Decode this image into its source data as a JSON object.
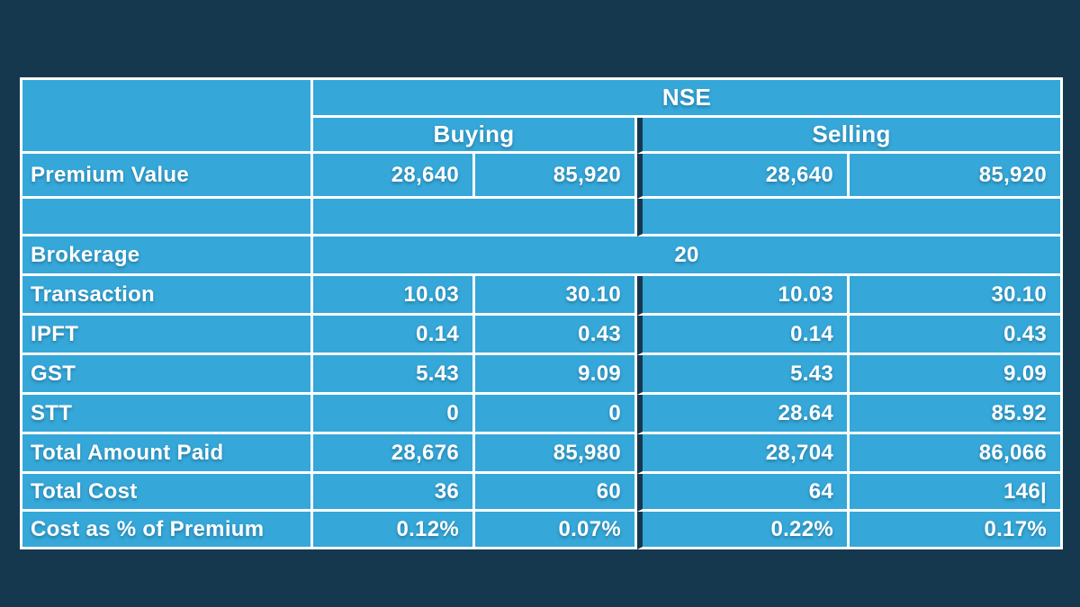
{
  "chart_data": {
    "type": "table",
    "title": "NSE",
    "groups": [
      {
        "label": "Buying",
        "span": 2
      },
      {
        "label": "Selling",
        "span": 2
      }
    ],
    "rows": [
      {
        "label": "Premium Value",
        "values": [
          "28,640",
          "85,920",
          "28,640",
          "85,920"
        ]
      },
      {
        "label": "",
        "values": [
          "",
          "",
          "",
          ""
        ]
      },
      {
        "label": "Brokerage",
        "merged_value": "20"
      },
      {
        "label": "Transaction",
        "values": [
          "10.03",
          "30.10",
          "10.03",
          "30.10"
        ]
      },
      {
        "label": "IPFT",
        "values": [
          "0.14",
          "0.43",
          "0.14",
          "0.43"
        ]
      },
      {
        "label": "GST",
        "values": [
          "5.43",
          "9.09",
          "5.43",
          "9.09"
        ]
      },
      {
        "label": "STT",
        "values": [
          "0",
          "0",
          "28.64",
          "85.92"
        ]
      },
      {
        "label": "Total Amount Paid",
        "values": [
          "28,676",
          "85,980",
          "28,704",
          "86,066"
        ]
      },
      {
        "label": "Total Cost",
        "values": [
          "36",
          "60",
          "64",
          "146|"
        ]
      },
      {
        "label": "Cost as % of Premium",
        "values": [
          "0.12%",
          "0.07%",
          "0.22%",
          "0.17%"
        ]
      }
    ],
    "layout": {
      "legend": "none",
      "grid": "white-lines",
      "section_divider": "dark-vertical-between-buying-and-selling"
    },
    "colors": {
      "background": "#16384f",
      "cell": "#35a7d8",
      "border": "#ffffff",
      "text": "#ffffff"
    }
  }
}
